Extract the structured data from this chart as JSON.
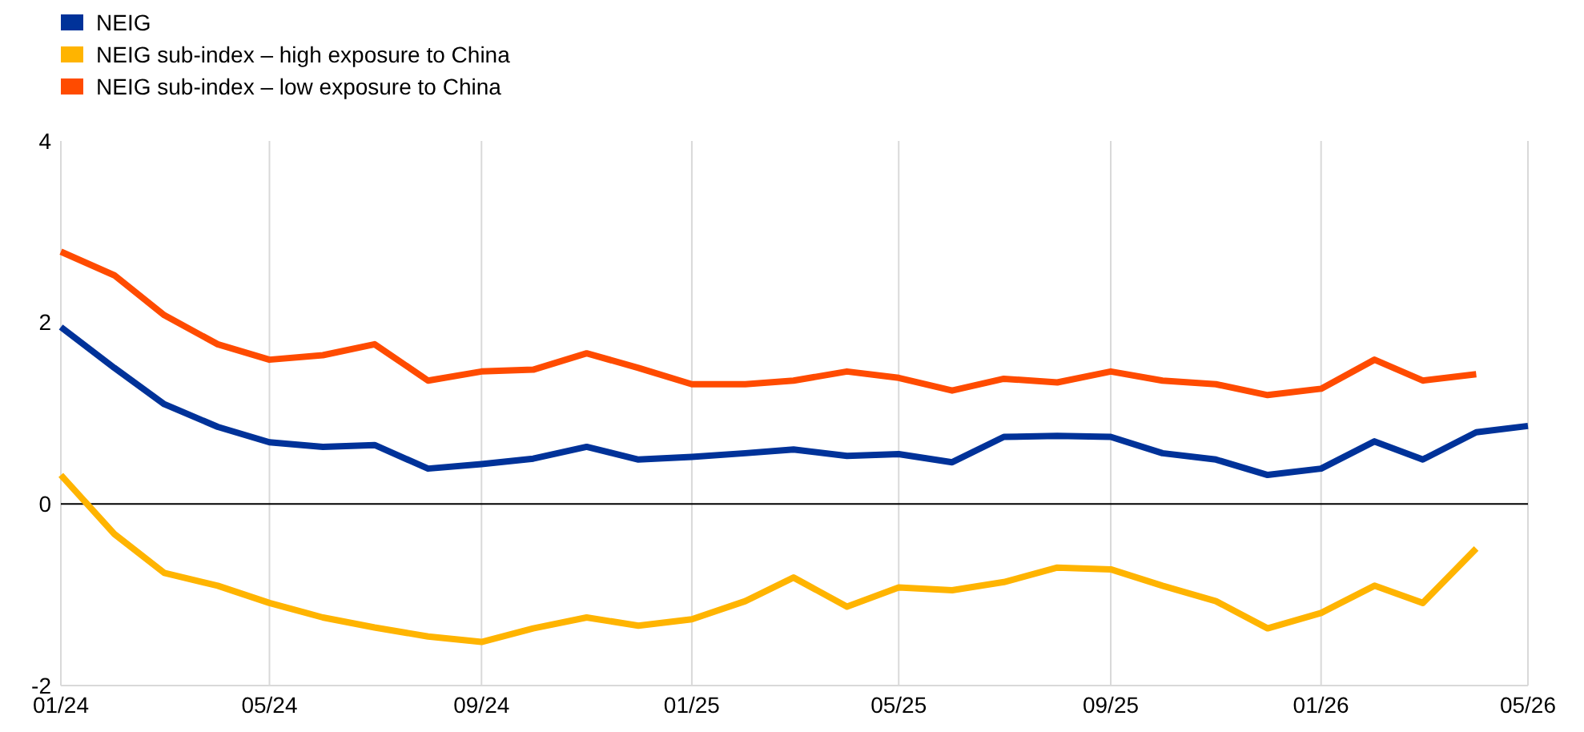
{
  "chart_data": {
    "type": "line",
    "x": [
      "2024-01",
      "2024-02",
      "2024-03",
      "2024-04",
      "2024-05",
      "2024-06",
      "2024-07",
      "2024-08",
      "2024-09",
      "2024-10",
      "2024-11",
      "2024-12",
      "2025-01",
      "2025-02",
      "2025-03",
      "2025-04",
      "2025-05",
      "2025-06",
      "2025-07",
      "2025-08",
      "2025-09",
      "2025-10",
      "2025-11",
      "2025-12",
      "2026-01",
      "2026-02",
      "2026-03",
      "2026-04",
      "2026-05"
    ],
    "series": [
      {
        "name": "NEIG",
        "color": "#003299",
        "values": [
          1.95,
          1.5,
          1.1,
          0.85,
          0.68,
          0.63,
          0.65,
          0.39,
          0.44,
          0.5,
          0.63,
          0.49,
          0.52,
          0.56,
          0.6,
          0.53,
          0.55,
          0.46,
          0.74,
          0.75,
          0.74,
          0.56,
          0.49,
          0.32,
          0.39,
          0.69,
          0.49,
          0.79,
          0.86
        ]
      },
      {
        "name": "NEIG sub-index – high exposure to China",
        "color": "#ffb400",
        "values": [
          0.32,
          -0.33,
          -0.76,
          -0.9,
          -1.09,
          -1.25,
          -1.36,
          -1.46,
          -1.52,
          -1.37,
          -1.25,
          -1.34,
          -1.27,
          -1.07,
          -0.81,
          -1.13,
          -0.92,
          -0.95,
          -0.86,
          -0.7,
          -0.72,
          -0.9,
          -1.07,
          -1.37,
          -1.2,
          -0.9,
          -1.09,
          -0.49,
          null
        ]
      },
      {
        "name": "NEIG sub-index – low exposure to China",
        "color": "#ff4b00",
        "values": [
          2.78,
          2.52,
          2.08,
          1.76,
          1.59,
          1.64,
          1.76,
          1.36,
          1.46,
          1.48,
          1.66,
          1.5,
          1.32,
          1.32,
          1.36,
          1.46,
          1.39,
          1.25,
          1.38,
          1.34,
          1.46,
          1.36,
          1.32,
          1.2,
          1.27,
          1.59,
          1.36,
          1.43,
          null
        ]
      }
    ],
    "xlim": [
      "2024-01",
      "2026-05"
    ],
    "xticks": [
      {
        "value": "2024-01",
        "label": "01/24"
      },
      {
        "value": "2024-05",
        "label": "05/24"
      },
      {
        "value": "2024-09",
        "label": "09/24"
      },
      {
        "value": "2025-01",
        "label": "01/25"
      },
      {
        "value": "2025-05",
        "label": "05/25"
      },
      {
        "value": "2025-09",
        "label": "09/25"
      },
      {
        "value": "2026-01",
        "label": "01/26"
      },
      {
        "value": "2026-05",
        "label": "05/26"
      }
    ],
    "ylim": [
      -2,
      4
    ],
    "yticks": [
      -2,
      0,
      2,
      4
    ],
    "ref_lines": [
      {
        "axis": "y",
        "value": 0,
        "color": "#000000"
      }
    ],
    "grid": "x",
    "legend": "top left",
    "marker": "none",
    "line_style": "solid"
  }
}
